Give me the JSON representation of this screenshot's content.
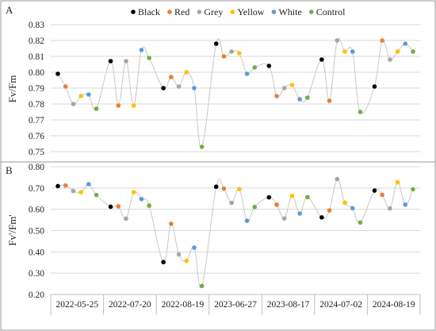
{
  "chart_data": [
    {
      "panel_label": "A",
      "type": "line",
      "ylabel": "Fv/Fm",
      "ylim": [
        0.75,
        0.83
      ],
      "yticks": [
        0.75,
        0.76,
        0.77,
        0.78,
        0.79,
        0.8,
        0.81,
        0.82,
        0.83
      ],
      "tick_format": 2,
      "grid": "horizontal",
      "legend_position": "top",
      "series_order": [
        "Black",
        "Red",
        "Grey",
        "Yellow",
        "White",
        "Control"
      ],
      "categories": [
        "2022-05-25",
        "2022-07-20",
        "2022-08-19",
        "2023-06-27",
        "2023-08-17",
        "2024-07-02",
        "2024-08-19"
      ],
      "groups": [
        [
          0.799,
          0.791,
          0.78,
          0.785,
          0.786,
          0.777
        ],
        [
          0.807,
          0.779,
          0.807,
          0.779,
          0.814,
          0.809
        ],
        [
          0.79,
          0.797,
          0.791,
          0.8,
          0.79,
          0.753
        ],
        [
          0.818,
          0.81,
          0.813,
          0.812,
          0.799,
          0.803
        ],
        [
          0.804,
          0.785,
          0.79,
          0.792,
          0.783,
          0.784
        ],
        [
          0.808,
          0.782,
          0.82,
          0.813,
          0.813,
          0.775
        ],
        [
          0.791,
          0.82,
          0.808,
          0.813,
          0.818,
          0.813
        ]
      ]
    },
    {
      "panel_label": "B",
      "type": "line",
      "ylabel": "Fv'/Fm'",
      "ylim": [
        0.2,
        0.8
      ],
      "yticks": [
        0.2,
        0.3,
        0.4,
        0.5,
        0.6,
        0.7,
        0.8
      ],
      "tick_format": 2,
      "grid": "horizontal",
      "series_order": [
        "Black",
        "Red",
        "Grey",
        "Yellow",
        "White",
        "Control"
      ],
      "categories": [
        "2022-05-25",
        "2022-07-20",
        "2022-08-19",
        "2023-06-27",
        "2023-08-17",
        "2024-07-02",
        "2024-08-19"
      ],
      "groups": [
        [
          0.709,
          0.712,
          0.686,
          0.68,
          0.718,
          0.667
        ],
        [
          0.612,
          0.614,
          0.556,
          0.68,
          0.648,
          0.617
        ],
        [
          0.352,
          0.532,
          0.388,
          0.358,
          0.42,
          0.24
        ],
        [
          0.706,
          0.697,
          0.63,
          0.695,
          0.546,
          0.611
        ],
        [
          0.656,
          0.622,
          0.557,
          0.663,
          0.58,
          0.657
        ],
        [
          0.562,
          0.595,
          0.742,
          0.631,
          0.605,
          0.538
        ],
        [
          0.688,
          0.668,
          0.604,
          0.727,
          0.622,
          0.694
        ]
      ]
    }
  ],
  "legend": [
    {
      "name": "Black",
      "color": "#000000"
    },
    {
      "name": "Red",
      "color": "#ED7D31"
    },
    {
      "name": "Grey",
      "color": "#A5A5A5"
    },
    {
      "name": "Yellow",
      "color": "#FFC000"
    },
    {
      "name": "White",
      "color": "#5B9BD5"
    },
    {
      "name": "Control",
      "color": "#70AD47"
    }
  ],
  "line_color": "#c8c8c8"
}
